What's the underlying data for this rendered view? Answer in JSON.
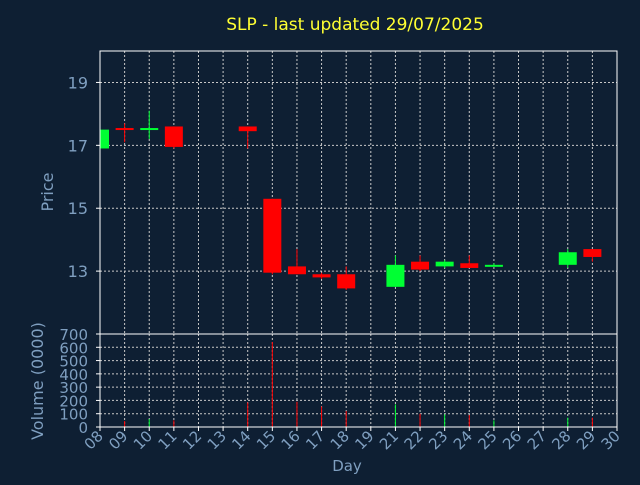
{
  "colors": {
    "background": "#0e1f33",
    "title": "#ffff33",
    "axis_text": "#7f9fc0",
    "frame": "#ffffff",
    "grid": "#c8c8c8",
    "up": "#00ff33",
    "down": "#ff0000"
  },
  "chart_data": {
    "type": "candlestick",
    "title": "SLP - last updated 29/07/2025",
    "xlabel": "Day",
    "x_ticks": [
      "08",
      "09",
      "10",
      "11",
      "12",
      "13",
      "14",
      "15",
      "16",
      "17",
      "18",
      "19",
      "21",
      "22",
      "23",
      "24",
      "25",
      "26",
      "27",
      "28",
      "29",
      "30"
    ],
    "price_panel": {
      "ylabel": "Price",
      "ylim": [
        11.0,
        20.0
      ],
      "y_ticks": [
        13,
        15,
        17,
        19
      ],
      "grid": true,
      "candles": [
        {
          "day": "08",
          "open": 16.9,
          "high": 17.5,
          "low": 16.9,
          "close": 17.5
        },
        {
          "day": "09",
          "open": 17.55,
          "high": 17.7,
          "low": 17.1,
          "close": 17.5
        },
        {
          "day": "10",
          "open": 17.5,
          "high": 18.1,
          "low": 17.2,
          "close": 17.55
        },
        {
          "day": "11",
          "open": 17.6,
          "high": 17.6,
          "low": 16.9,
          "close": 16.95
        },
        {
          "day": "14",
          "open": 17.6,
          "high": 17.6,
          "low": 16.9,
          "close": 17.45
        },
        {
          "day": "15",
          "open": 15.3,
          "high": 15.3,
          "low": 12.9,
          "close": 12.95
        },
        {
          "day": "16",
          "open": 13.15,
          "high": 13.7,
          "low": 12.9,
          "close": 12.9
        },
        {
          "day": "17",
          "open": 12.9,
          "high": 12.95,
          "low": 12.75,
          "close": 12.8
        },
        {
          "day": "18",
          "open": 12.9,
          "high": 13.15,
          "low": 12.4,
          "close": 12.45
        },
        {
          "day": "21",
          "open": 12.5,
          "high": 13.5,
          "low": 12.5,
          "close": 13.2
        },
        {
          "day": "22",
          "open": 13.3,
          "high": 13.5,
          "low": 13.0,
          "close": 13.05
        },
        {
          "day": "23",
          "open": 13.15,
          "high": 13.35,
          "low": 13.1,
          "close": 13.3
        },
        {
          "day": "24",
          "open": 13.25,
          "high": 13.5,
          "low": 13.1,
          "close": 13.1
        },
        {
          "day": "25",
          "open": 13.15,
          "high": 13.25,
          "low": 13.15,
          "close": 13.2
        },
        {
          "day": "28",
          "open": 13.2,
          "high": 13.7,
          "low": 13.1,
          "close": 13.6
        },
        {
          "day": "29",
          "open": 13.7,
          "high": 13.7,
          "low": 13.3,
          "close": 13.45
        }
      ]
    },
    "volume_panel": {
      "ylabel": "Volume (0000)",
      "ylim": [
        0,
        700
      ],
      "y_ticks": [
        0,
        100,
        200,
        300,
        400,
        500,
        600,
        700
      ],
      "grid": true,
      "bars": [
        {
          "day": "08",
          "value": 35,
          "direction": "up"
        },
        {
          "day": "09",
          "value": 45,
          "direction": "down"
        },
        {
          "day": "10",
          "value": 60,
          "direction": "up"
        },
        {
          "day": "11",
          "value": 50,
          "direction": "down"
        },
        {
          "day": "14",
          "value": 185,
          "direction": "down"
        },
        {
          "day": "15",
          "value": 640,
          "direction": "down"
        },
        {
          "day": "16",
          "value": 190,
          "direction": "down"
        },
        {
          "day": "17",
          "value": 155,
          "direction": "down"
        },
        {
          "day": "18",
          "value": 120,
          "direction": "down"
        },
        {
          "day": "21",
          "value": 170,
          "direction": "up"
        },
        {
          "day": "22",
          "value": 100,
          "direction": "down"
        },
        {
          "day": "23",
          "value": 95,
          "direction": "up"
        },
        {
          "day": "24",
          "value": 90,
          "direction": "down"
        },
        {
          "day": "25",
          "value": 50,
          "direction": "up"
        },
        {
          "day": "28",
          "value": 70,
          "direction": "up"
        },
        {
          "day": "29",
          "value": 70,
          "direction": "down"
        }
      ]
    }
  }
}
